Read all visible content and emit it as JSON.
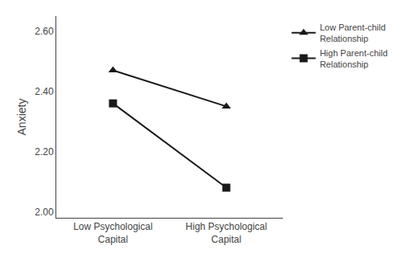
{
  "chart_data": {
    "type": "line",
    "categories": [
      "Low Psychological\nCapital",
      "High Psychological\nCapital"
    ],
    "series": [
      {
        "name": "Low Parent-child\nRelationship",
        "color": "#1a1a1a",
        "marker": "triangle",
        "line_style": "solid",
        "values": [
          2.47,
          2.35
        ]
      },
      {
        "name": "High Parent-child\nRelationship",
        "color": "#1a1a1a",
        "marker": "square",
        "line_style": "solid",
        "values": [
          2.36,
          2.08
        ]
      }
    ],
    "ylabel": "Anxiety",
    "ylim": [
      1.98,
      2.65
    ],
    "yticks": [
      {
        "value": 2.0,
        "label": "2.00"
      },
      {
        "value": 2.2,
        "label": "2.20"
      },
      {
        "value": 2.4,
        "label": "2.40"
      },
      {
        "value": 2.6,
        "label": "2.60"
      }
    ],
    "grid": false,
    "legend": "upper right"
  }
}
